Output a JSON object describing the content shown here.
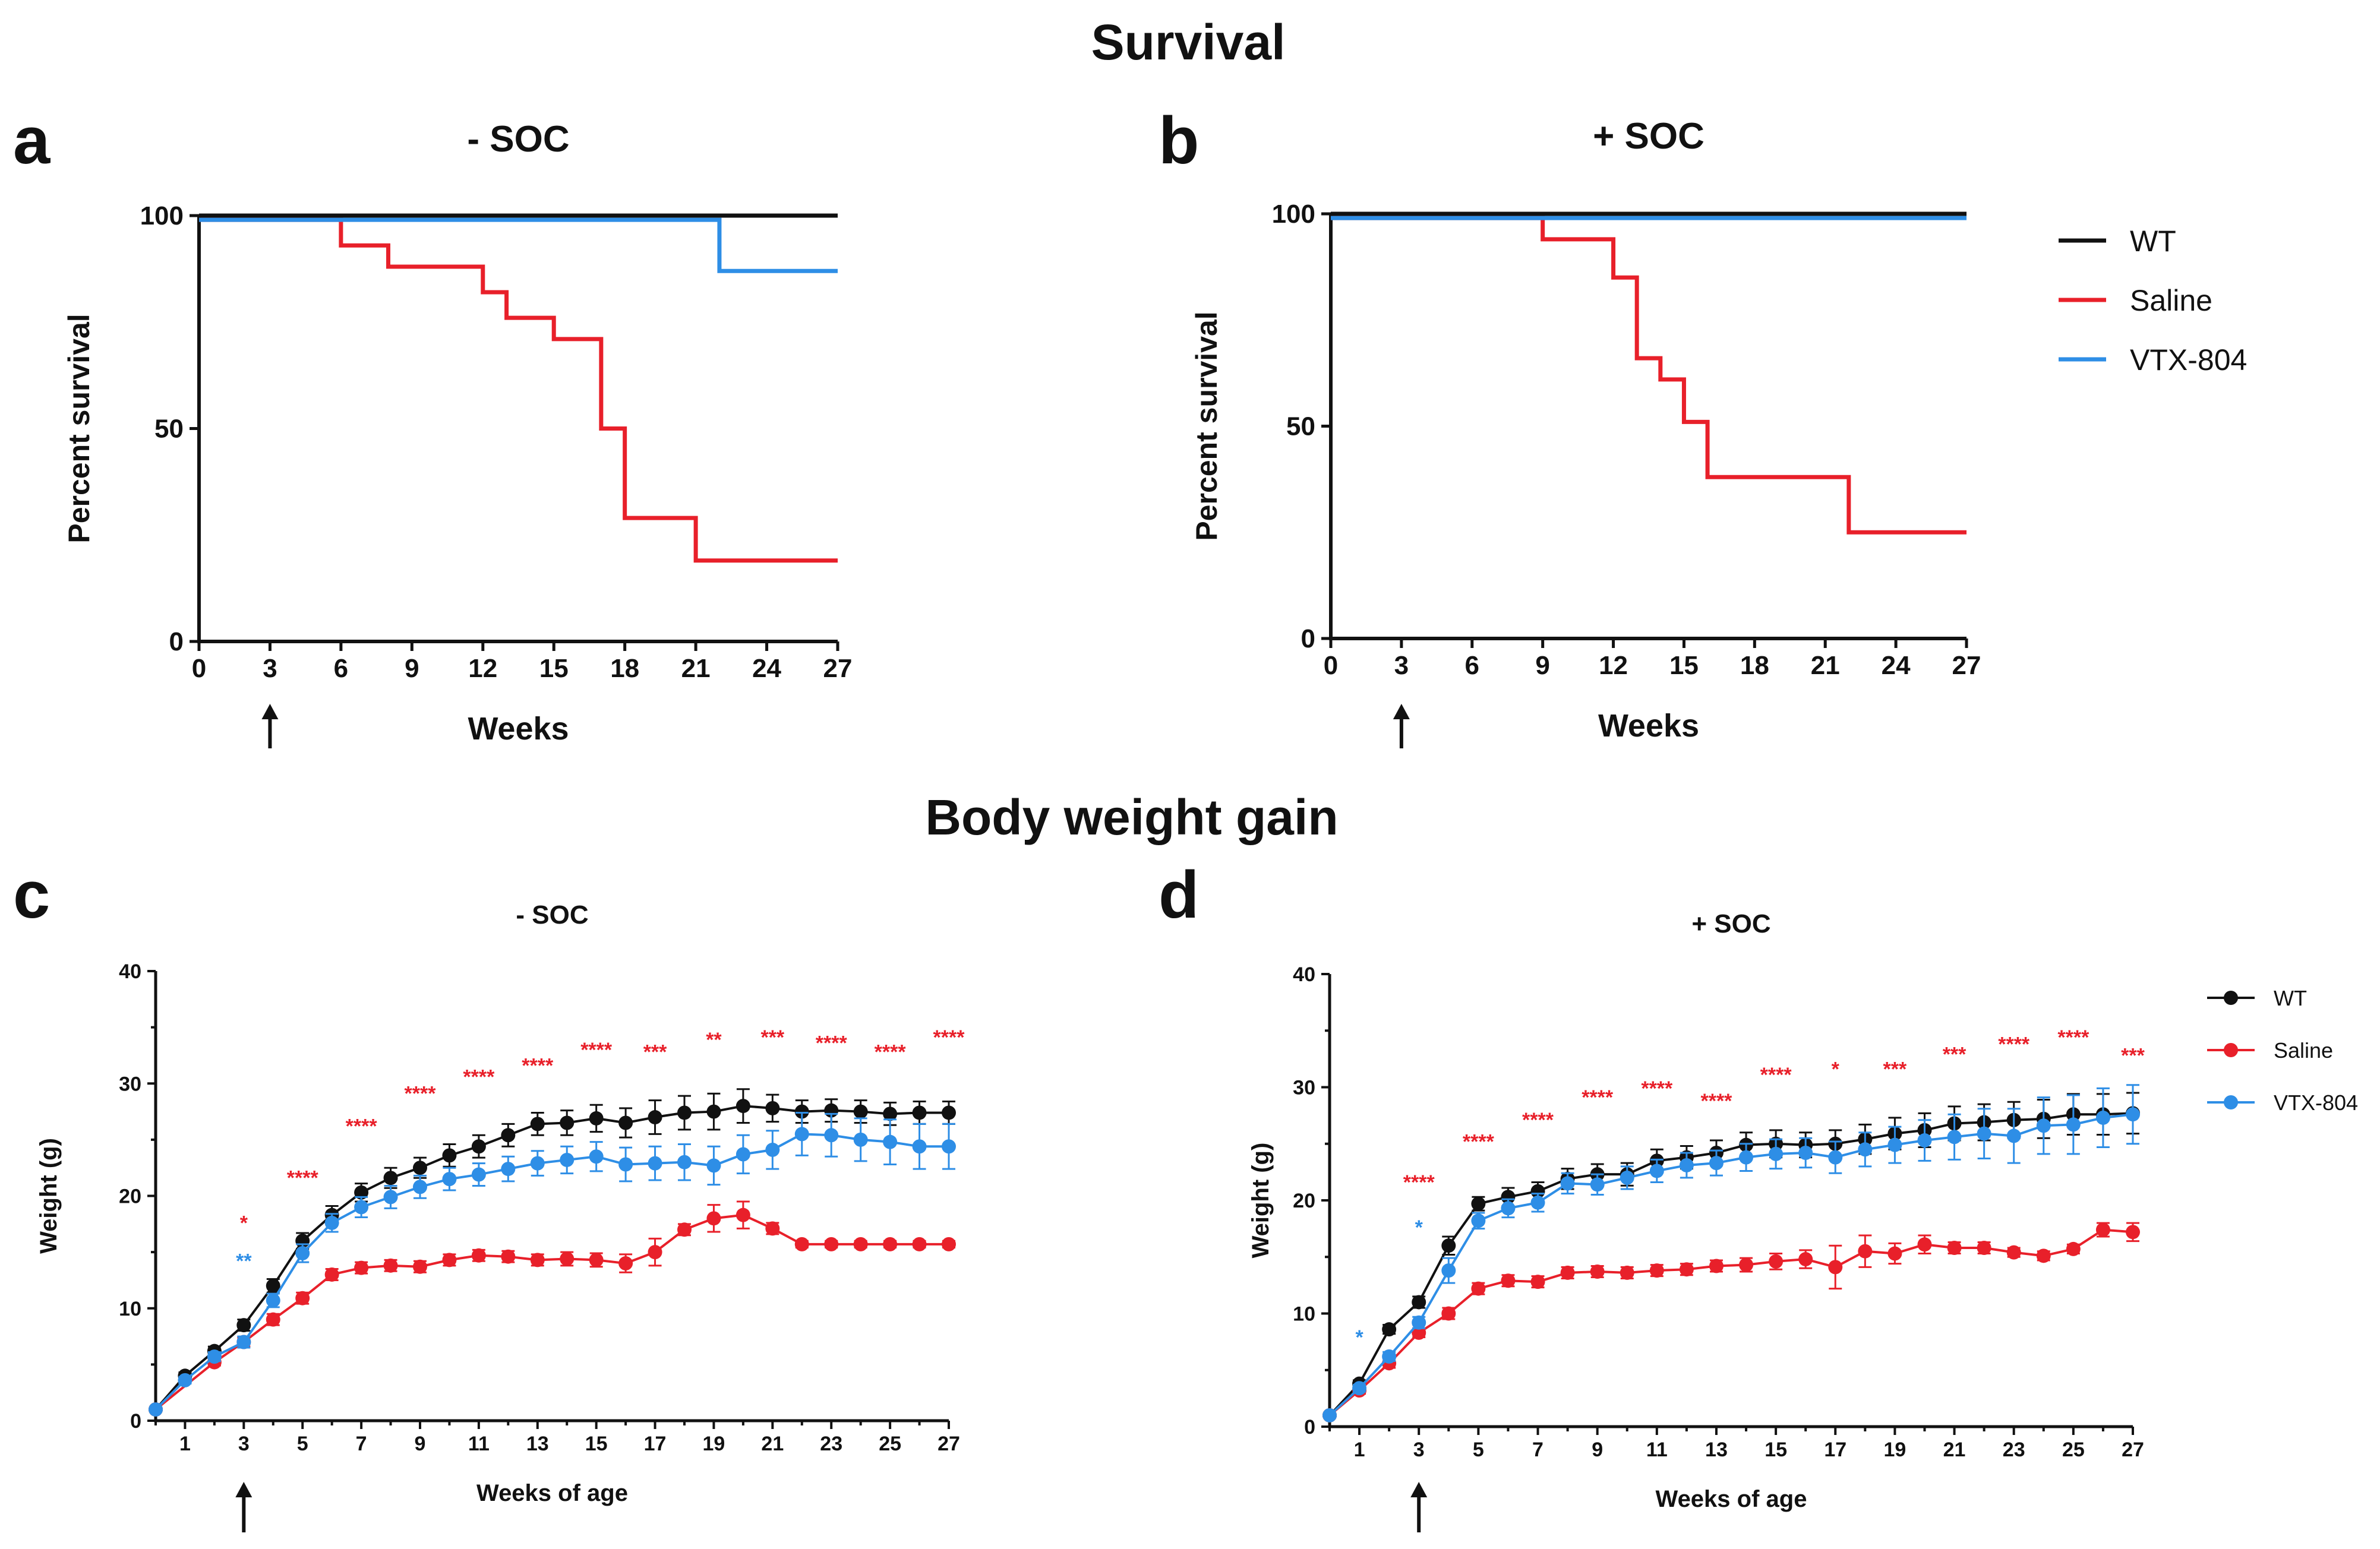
{
  "titles": {
    "survival": "Survival",
    "body_weight": "Body weight gain"
  },
  "colors": {
    "WT": "#111111",
    "Saline": "#e8202a",
    "VTX-804": "#2e8ee6"
  },
  "chart_data": [
    {
      "panel": "a",
      "type": "line",
      "step": true,
      "title": "- SOC",
      "xlabel": "Weeks",
      "ylabel": "Percent survival",
      "xlim": [
        0,
        27
      ],
      "ylim": [
        0,
        100
      ],
      "xticks": [
        0,
        3,
        6,
        9,
        12,
        15,
        18,
        21,
        24,
        27
      ],
      "yticks": [
        0,
        50,
        100
      ],
      "treatment_arrow_week": 3,
      "series": [
        {
          "name": "WT",
          "x": [
            0,
            27
          ],
          "y": [
            100,
            100
          ]
        },
        {
          "name": "Saline",
          "x": [
            0,
            6,
            8,
            12,
            13,
            15,
            17,
            18,
            21,
            27
          ],
          "y": [
            99,
            93,
            88,
            82,
            76,
            71,
            50,
            29,
            19,
            19
          ]
        },
        {
          "name": "VTX-804",
          "x": [
            0,
            22,
            27
          ],
          "y": [
            99,
            87,
            87
          ]
        }
      ]
    },
    {
      "panel": "b",
      "type": "line",
      "step": true,
      "title": "+ SOC",
      "xlabel": "Weeks",
      "ylabel": "Percent survival",
      "xlim": [
        0,
        27
      ],
      "ylim": [
        0,
        100
      ],
      "xticks": [
        0,
        3,
        6,
        9,
        12,
        15,
        18,
        21,
        24,
        27
      ],
      "yticks": [
        0,
        50,
        100
      ],
      "treatment_arrow_week": 3,
      "legend": [
        "WT",
        "Saline",
        "VTX-804"
      ],
      "series": [
        {
          "name": "WT",
          "x": [
            0,
            27
          ],
          "y": [
            100,
            100
          ]
        },
        {
          "name": "Saline",
          "x": [
            0,
            9,
            12,
            13,
            14,
            15,
            16,
            22,
            27
          ],
          "y": [
            99,
            94,
            85,
            66,
            61,
            51,
            38,
            25,
            25
          ]
        },
        {
          "name": "VTX-804",
          "x": [
            0,
            27
          ],
          "y": [
            99,
            99
          ]
        }
      ]
    },
    {
      "panel": "c",
      "type": "line",
      "title": "- SOC",
      "xlabel": "Weeks of age",
      "ylabel": "Weight (g)",
      "xlim": [
        0,
        27
      ],
      "ylim": [
        0,
        40
      ],
      "xticks": [
        1,
        3,
        5,
        7,
        9,
        11,
        13,
        15,
        17,
        19,
        21,
        23,
        25,
        27
      ],
      "yticks": [
        0,
        10,
        20,
        30,
        40
      ],
      "treatment_arrow_week": 3,
      "series": [
        {
          "name": "WT",
          "x": [
            0,
            1,
            2,
            3,
            4,
            5,
            6,
            7,
            8,
            9,
            10,
            11,
            12,
            13,
            14,
            15,
            16,
            17,
            18,
            19,
            20,
            21,
            22,
            23,
            24,
            25,
            26,
            27
          ],
          "y": [
            1.0,
            4.0,
            6.2,
            8.5,
            12.0,
            16.0,
            18.3,
            20.3,
            21.6,
            22.5,
            23.6,
            24.4,
            25.4,
            26.4,
            26.5,
            26.9,
            26.5,
            27.0,
            27.4,
            27.5,
            28.0,
            27.8,
            27.5,
            27.6,
            27.5,
            27.3,
            27.4,
            27.4
          ],
          "err": [
            0.2,
            0.3,
            0.4,
            0.5,
            0.6,
            0.7,
            0.8,
            0.8,
            0.9,
            0.9,
            1.0,
            1.0,
            1.0,
            1.0,
            1.1,
            1.2,
            1.3,
            1.5,
            1.5,
            1.6,
            1.5,
            1.2,
            1.0,
            1.0,
            1.0,
            1.0,
            1.0,
            1.0
          ]
        },
        {
          "name": "Saline",
          "x": [
            0,
            2,
            3,
            4,
            5,
            6,
            7,
            8,
            9,
            10,
            11,
            12,
            13,
            14,
            15,
            16,
            17,
            18,
            19,
            20,
            21,
            22,
            23,
            24,
            25,
            26,
            27
          ],
          "y": [
            1.0,
            5.2,
            7.0,
            9.0,
            10.9,
            13.0,
            13.6,
            13.8,
            13.7,
            14.3,
            14.7,
            14.6,
            14.3,
            14.4,
            14.3,
            14.0,
            15.0,
            17.0,
            18.0,
            18.3,
            17.1,
            15.7,
            15.7,
            15.7,
            15.7,
            15.7,
            15.7
          ],
          "err": [
            0.2,
            0.3,
            0.4,
            0.5,
            0.5,
            0.5,
            0.5,
            0.5,
            0.5,
            0.5,
            0.5,
            0.5,
            0.5,
            0.6,
            0.6,
            0.8,
            1.2,
            0.5,
            1.2,
            1.2,
            0.5,
            0.3,
            0.3,
            0.3,
            0.3,
            0.3,
            0.3
          ]
        },
        {
          "name": "VTX-804",
          "x": [
            0,
            1,
            2,
            3,
            4,
            5,
            6,
            7,
            8,
            9,
            10,
            11,
            12,
            13,
            14,
            15,
            16,
            17,
            18,
            19,
            20,
            21,
            22,
            23,
            24,
            25,
            26,
            27
          ],
          "y": [
            1.0,
            3.6,
            5.7,
            7.0,
            10.7,
            14.9,
            17.6,
            19.0,
            19.9,
            20.8,
            21.5,
            21.9,
            22.4,
            22.9,
            23.2,
            23.5,
            22.8,
            22.9,
            23.0,
            22.7,
            23.7,
            24.1,
            25.5,
            25.4,
            25.0,
            24.8,
            24.4,
            24.4
          ],
          "err": [
            0.2,
            0.3,
            0.4,
            0.5,
            0.6,
            0.8,
            0.8,
            0.9,
            1.0,
            1.0,
            1.0,
            1.0,
            1.1,
            1.1,
            1.2,
            1.3,
            1.5,
            1.5,
            1.6,
            1.7,
            1.7,
            1.7,
            1.9,
            1.9,
            1.9,
            2.0,
            2.0,
            2.0
          ]
        }
      ],
      "annotations": [
        {
          "x": 3,
          "y": 17.0,
          "text": "*",
          "series": "Saline"
        },
        {
          "x": 3,
          "y": 13.6,
          "text": "**",
          "series": "VTX-804"
        },
        {
          "x": 5,
          "y": 21.0,
          "text": "****",
          "series": "Saline"
        },
        {
          "x": 7,
          "y": 25.6,
          "text": "****",
          "series": "Saline"
        },
        {
          "x": 9,
          "y": 28.5,
          "text": "****",
          "series": "Saline"
        },
        {
          "x": 11,
          "y": 30.0,
          "text": "****",
          "series": "Saline"
        },
        {
          "x": 13,
          "y": 31.0,
          "text": "****",
          "series": "Saline"
        },
        {
          "x": 15,
          "y": 32.4,
          "text": "****",
          "series": "Saline"
        },
        {
          "x": 17,
          "y": 32.2,
          "text": "***",
          "series": "Saline"
        },
        {
          "x": 19,
          "y": 33.3,
          "text": "**",
          "series": "Saline"
        },
        {
          "x": 21,
          "y": 33.5,
          "text": "***",
          "series": "Saline"
        },
        {
          "x": 23,
          "y": 33.0,
          "text": "****",
          "series": "Saline"
        },
        {
          "x": 25,
          "y": 32.2,
          "text": "****",
          "series": "Saline"
        },
        {
          "x": 27,
          "y": 33.5,
          "text": "****",
          "series": "Saline"
        }
      ]
    },
    {
      "panel": "d",
      "type": "line",
      "title": "+ SOC",
      "xlabel": "Weeks of age",
      "ylabel": "Weight (g)",
      "xlim": [
        0,
        27
      ],
      "ylim": [
        0,
        40
      ],
      "xticks": [
        1,
        3,
        5,
        7,
        9,
        11,
        13,
        15,
        17,
        19,
        21,
        23,
        25,
        27
      ],
      "yticks": [
        0,
        10,
        20,
        30,
        40
      ],
      "treatment_arrow_week": 3,
      "legend": [
        "WT",
        "Saline",
        "VTX-804"
      ],
      "series": [
        {
          "name": "WT",
          "x": [
            0,
            1,
            2,
            3,
            4,
            5,
            6,
            7,
            8,
            9,
            10,
            11,
            12,
            13,
            14,
            15,
            16,
            17,
            18,
            19,
            20,
            21,
            22,
            23,
            24,
            25,
            26,
            27
          ],
          "y": [
            1.0,
            3.8,
            8.6,
            11.0,
            16.0,
            19.7,
            20.3,
            20.8,
            21.9,
            22.3,
            22.3,
            23.5,
            23.8,
            24.2,
            24.9,
            25.0,
            24.9,
            25.0,
            25.4,
            25.9,
            26.2,
            26.8,
            26.9,
            27.1,
            27.2,
            27.6,
            27.6,
            27.7
          ],
          "err": [
            0.2,
            0.3,
            0.4,
            0.5,
            0.8,
            0.6,
            0.8,
            0.8,
            0.9,
            0.9,
            1.0,
            1.0,
            1.0,
            1.1,
            1.1,
            1.2,
            1.1,
            1.2,
            1.3,
            1.4,
            1.5,
            1.5,
            1.6,
            1.6,
            1.7,
            1.8,
            1.8,
            1.8
          ]
        },
        {
          "name": "Saline",
          "x": [
            0,
            1,
            2,
            3,
            4,
            5,
            6,
            7,
            8,
            9,
            10,
            11,
            12,
            13,
            14,
            15,
            16,
            17,
            18,
            19,
            20,
            21,
            22,
            23,
            24,
            25,
            26,
            27
          ],
          "y": [
            1.0,
            3.2,
            5.6,
            8.3,
            10.0,
            12.2,
            12.9,
            12.8,
            13.6,
            13.7,
            13.6,
            13.8,
            13.9,
            14.2,
            14.3,
            14.6,
            14.8,
            14.1,
            15.5,
            15.3,
            16.1,
            15.8,
            15.8,
            15.4,
            15.1,
            15.7,
            17.4,
            17.2
          ],
          "err": [
            0.2,
            0.3,
            0.4,
            0.4,
            0.5,
            0.5,
            0.5,
            0.5,
            0.5,
            0.5,
            0.5,
            0.5,
            0.5,
            0.5,
            0.6,
            0.7,
            0.8,
            1.9,
            1.4,
            0.9,
            0.8,
            0.5,
            0.5,
            0.4,
            0.4,
            0.4,
            0.6,
            0.8
          ]
        },
        {
          "name": "VTX-804",
          "x": [
            0,
            1,
            2,
            3,
            4,
            5,
            6,
            7,
            8,
            9,
            10,
            11,
            12,
            13,
            14,
            15,
            16,
            17,
            18,
            19,
            20,
            21,
            22,
            23,
            24,
            25,
            26,
            27
          ],
          "y": [
            1.0,
            3.4,
            6.2,
            9.2,
            13.8,
            18.2,
            19.3,
            19.8,
            21.5,
            21.4,
            22.0,
            22.6,
            23.1,
            23.3,
            23.8,
            24.1,
            24.2,
            23.8,
            24.5,
            24.9,
            25.3,
            25.6,
            25.9,
            25.7,
            26.6,
            26.7,
            27.3,
            27.6
          ],
          "err": [
            0.2,
            0.3,
            0.4,
            0.5,
            1.1,
            0.7,
            0.8,
            0.8,
            0.9,
            0.9,
            1.0,
            1.0,
            1.1,
            1.1,
            1.2,
            1.3,
            1.3,
            1.4,
            1.5,
            1.6,
            1.8,
            2.0,
            2.2,
            2.4,
            2.5,
            2.6,
            2.6,
            2.6
          ]
        }
      ],
      "annotations": [
        {
          "x": 1,
          "y": 7.3,
          "text": "*",
          "series": "VTX-804"
        },
        {
          "x": 3,
          "y": 17.0,
          "text": "*",
          "series": "VTX-804"
        },
        {
          "x": 3,
          "y": 21.0,
          "text": "****",
          "series": "Saline"
        },
        {
          "x": 5,
          "y": 24.6,
          "text": "****",
          "series": "Saline"
        },
        {
          "x": 7,
          "y": 26.5,
          "text": "****",
          "series": "Saline"
        },
        {
          "x": 9,
          "y": 28.5,
          "text": "****",
          "series": "Saline"
        },
        {
          "x": 11,
          "y": 29.3,
          "text": "****",
          "series": "Saline"
        },
        {
          "x": 13,
          "y": 28.2,
          "text": "****",
          "series": "Saline"
        },
        {
          "x": 15,
          "y": 30.5,
          "text": "****",
          "series": "Saline"
        },
        {
          "x": 17,
          "y": 31.0,
          "text": "*",
          "series": "Saline"
        },
        {
          "x": 19,
          "y": 31.0,
          "text": "***",
          "series": "Saline"
        },
        {
          "x": 21,
          "y": 32.3,
          "text": "***",
          "series": "Saline"
        },
        {
          "x": 23,
          "y": 33.2,
          "text": "****",
          "series": "Saline"
        },
        {
          "x": 25,
          "y": 33.8,
          "text": "****",
          "series": "Saline"
        },
        {
          "x": 27,
          "y": 32.2,
          "text": "***",
          "series": "Saline"
        }
      ]
    }
  ]
}
